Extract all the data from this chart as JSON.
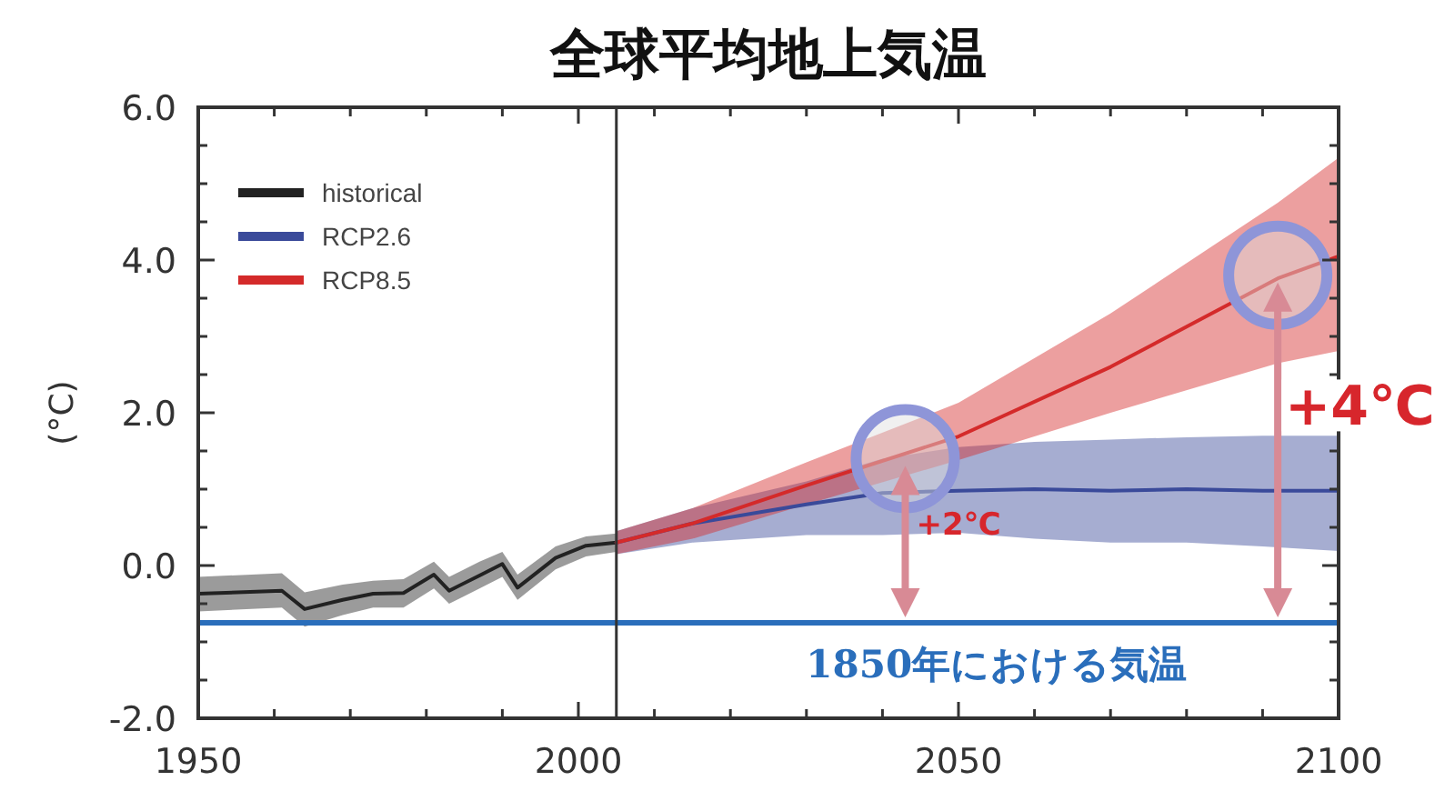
{
  "chart_data": {
    "type": "line",
    "title": "全球平均地上気温",
    "ylabel": "(°C)",
    "xlim": [
      1950,
      2100
    ],
    "ylim": [
      -2.0,
      6.0
    ],
    "xticks": [
      1950,
      {
        "value": 1960,
        "label": null
      },
      {
        "value": 1970,
        "label": null
      },
      {
        "value": 1980,
        "label": null
      },
      {
        "value": 1990,
        "label": null
      },
      2000,
      {
        "value": 2010,
        "label": null
      },
      {
        "value": 2020,
        "label": null
      },
      {
        "value": 2030,
        "label": null
      },
      {
        "value": 2040,
        "label": null
      },
      2050,
      {
        "value": 2060,
        "label": null
      },
      {
        "value": 2070,
        "label": null
      },
      {
        "value": 2080,
        "label": null
      },
      {
        "value": 2090,
        "label": null
      },
      2100
    ],
    "yticks": [
      {
        "value": -2,
        "label": "-2.0"
      },
      {
        "value": -1.5,
        "label": null
      },
      {
        "value": -1,
        "label": null
      },
      {
        "value": -0.5,
        "label": null
      },
      {
        "value": 0,
        "label": "0.0"
      },
      {
        "value": 0.5,
        "label": null
      },
      {
        "value": 1,
        "label": null
      },
      {
        "value": 1.5,
        "label": null
      },
      {
        "value": 2,
        "label": "2.0"
      },
      {
        "value": 2.5,
        "label": null
      },
      {
        "value": 3,
        "label": null
      },
      {
        "value": 3.5,
        "label": null
      },
      {
        "value": 4,
        "label": "4.0"
      },
      {
        "value": 4.5,
        "label": null
      },
      {
        "value": 5,
        "label": null
      },
      {
        "value": 5.5,
        "label": null
      },
      {
        "value": 6,
        "label": "6.0"
      }
    ],
    "series": [
      {
        "name": "historical",
        "color": "#222222",
        "x": [
          1950,
          1961,
          1964,
          1969,
          1973,
          1977,
          1981,
          1983,
          1987,
          1990,
          1992,
          1997,
          2001,
          2005
        ],
        "values": [
          -0.37,
          -0.33,
          -0.57,
          -0.45,
          -0.37,
          -0.36,
          -0.12,
          -0.33,
          -0.13,
          0.02,
          -0.29,
          0.1,
          0.26,
          0.3
        ],
        "lower": [
          -0.6,
          -0.55,
          -0.8,
          -0.65,
          -0.55,
          -0.55,
          -0.3,
          -0.5,
          -0.3,
          -0.15,
          -0.45,
          -0.05,
          0.12,
          0.18
        ],
        "upper": [
          -0.15,
          -0.1,
          -0.35,
          -0.25,
          -0.2,
          -0.18,
          0.05,
          -0.15,
          0.05,
          0.18,
          -0.12,
          0.25,
          0.38,
          0.42
        ]
      },
      {
        "name": "RCP2.6",
        "color": "#3a4a9a",
        "x": [
          2005,
          2015,
          2030,
          2040,
          2050,
          2060,
          2070,
          2080,
          2090,
          2100
        ],
        "values": [
          0.3,
          0.55,
          0.8,
          0.95,
          0.98,
          1.0,
          0.98,
          1.0,
          0.98,
          0.98
        ],
        "lower": [
          0.15,
          0.3,
          0.4,
          0.4,
          0.43,
          0.35,
          0.3,
          0.3,
          0.25,
          0.19
        ],
        "upper": [
          0.45,
          0.75,
          1.1,
          1.4,
          1.55,
          1.62,
          1.65,
          1.68,
          1.7,
          1.7
        ]
      },
      {
        "name": "RCP8.5",
        "color": "#d42a2a",
        "x": [
          2005,
          2015,
          2030,
          2050,
          2070,
          2092,
          2100
        ],
        "values": [
          0.3,
          0.55,
          1.05,
          1.69,
          2.6,
          3.76,
          4.05
        ],
        "lower": [
          0.15,
          0.35,
          0.8,
          1.38,
          2.0,
          2.65,
          2.81
        ],
        "upper": [
          0.45,
          0.75,
          1.35,
          2.13,
          3.3,
          4.75,
          5.34
        ]
      }
    ],
    "ref_lines": [
      {
        "axis": "y",
        "value": -0.75,
        "label": "1850年における気温",
        "color": "#2a6ebb"
      },
      {
        "axis": "x",
        "value": 2005,
        "color": "#333333"
      }
    ],
    "annotations": [
      {
        "text": "+2℃",
        "x": 2043,
        "y": 1.4
      },
      {
        "text": "+4℃",
        "x": 2092,
        "y": 3.8
      }
    ],
    "legend": "top left",
    "grid": false
  }
}
